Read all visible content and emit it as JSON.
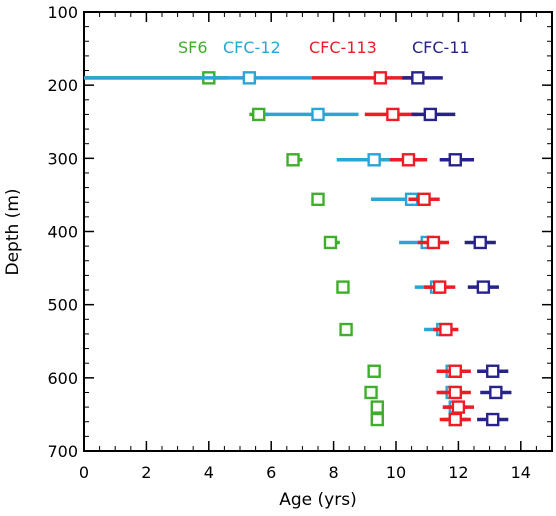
{
  "chart_data": {
    "type": "scatter",
    "title": "",
    "xlabel": "Age (yrs)",
    "ylabel": "Depth (m)",
    "xlim": [
      0,
      15
    ],
    "ylim": [
      700,
      100
    ],
    "y_inverted": true,
    "x_ticks": [
      "0",
      "2",
      "4",
      "6",
      "8",
      "10",
      "12",
      "14"
    ],
    "y_ticks": [
      "100",
      "200",
      "300",
      "400",
      "500",
      "600",
      "700"
    ],
    "grid": false,
    "legend_position": "top",
    "marker": "open-square-with-horizontal-error-bar",
    "series": [
      {
        "name": "SF6",
        "color": "#3fae2a",
        "points": [
          {
            "depth": 190,
            "age": 4.0,
            "age_min": 0.0,
            "age_max": 4.6
          },
          {
            "depth": 240,
            "age": 5.6,
            "age_min": 5.3,
            "age_max": 5.9
          },
          {
            "depth": 302,
            "age": 6.7,
            "age_min": 6.5,
            "age_max": 7.0
          },
          {
            "depth": 356,
            "age": 7.5,
            "age_min": 7.3,
            "age_max": 7.7
          },
          {
            "depth": 415,
            "age": 7.9,
            "age_min": 7.7,
            "age_max": 8.2
          },
          {
            "depth": 476,
            "age": 8.3,
            "age_min": 8.1,
            "age_max": 8.5
          },
          {
            "depth": 534,
            "age": 8.4,
            "age_min": 8.2,
            "age_max": 8.6
          },
          {
            "depth": 591,
            "age": 9.3,
            "age_min": 9.1,
            "age_max": 9.5
          },
          {
            "depth": 620,
            "age": 9.2,
            "age_min": 9.0,
            "age_max": 9.4
          },
          {
            "depth": 640,
            "age": 9.4,
            "age_min": 9.2,
            "age_max": 9.6
          },
          {
            "depth": 657,
            "age": 9.4,
            "age_min": 9.2,
            "age_max": 9.6
          }
        ]
      },
      {
        "name": "CFC-12",
        "color": "#2ba4d6",
        "points": [
          {
            "depth": 190,
            "age": 5.3,
            "age_min": 0.0,
            "age_max": 7.3
          },
          {
            "depth": 240,
            "age": 7.5,
            "age_min": 5.8,
            "age_max": 8.8
          },
          {
            "depth": 302,
            "age": 9.3,
            "age_min": 8.1,
            "age_max": 10.3
          },
          {
            "depth": 356,
            "age": 10.5,
            "age_min": 9.2,
            "age_max": 11.0
          },
          {
            "depth": 415,
            "age": 11.0,
            "age_min": 10.1,
            "age_max": 11.5
          },
          {
            "depth": 476,
            "age": 11.3,
            "age_min": 10.6,
            "age_max": 11.6
          },
          {
            "depth": 534,
            "age": 11.5,
            "age_min": 10.9,
            "age_max": 11.8
          },
          {
            "depth": 591,
            "age": 11.8,
            "age_min": 11.4,
            "age_max": 12.2
          },
          {
            "depth": 620,
            "age": 11.8,
            "age_min": 11.4,
            "age_max": 12.2
          },
          {
            "depth": 640,
            "age": 11.9,
            "age_min": 11.5,
            "age_max": 12.3
          },
          {
            "depth": 657,
            "age": 11.9,
            "age_min": 11.5,
            "age_max": 12.3
          }
        ]
      },
      {
        "name": "CFC-113",
        "color": "#ee1c24",
        "points": [
          {
            "depth": 190,
            "age": 9.5,
            "age_min": 7.3,
            "age_max": 10.6
          },
          {
            "depth": 240,
            "age": 9.9,
            "age_min": 9.0,
            "age_max": 10.7
          },
          {
            "depth": 302,
            "age": 10.4,
            "age_min": 9.8,
            "age_max": 11.0
          },
          {
            "depth": 356,
            "age": 10.9,
            "age_min": 10.4,
            "age_max": 11.4
          },
          {
            "depth": 415,
            "age": 11.2,
            "age_min": 10.7,
            "age_max": 11.7
          },
          {
            "depth": 476,
            "age": 11.4,
            "age_min": 10.9,
            "age_max": 11.9
          },
          {
            "depth": 534,
            "age": 11.6,
            "age_min": 11.2,
            "age_max": 12.0
          },
          {
            "depth": 591,
            "age": 11.9,
            "age_min": 11.3,
            "age_max": 12.4
          },
          {
            "depth": 620,
            "age": 11.9,
            "age_min": 11.3,
            "age_max": 12.4
          },
          {
            "depth": 640,
            "age": 12.0,
            "age_min": 11.5,
            "age_max": 12.5
          },
          {
            "depth": 657,
            "age": 11.9,
            "age_min": 11.4,
            "age_max": 12.4
          }
        ]
      },
      {
        "name": "CFC-11",
        "color": "#28238a",
        "points": [
          {
            "depth": 190,
            "age": 10.7,
            "age_min": 10.2,
            "age_max": 11.5
          },
          {
            "depth": 240,
            "age": 11.1,
            "age_min": 10.5,
            "age_max": 11.9
          },
          {
            "depth": 302,
            "age": 11.9,
            "age_min": 11.4,
            "age_max": 12.5
          },
          {
            "depth": 415,
            "age": 12.7,
            "age_min": 12.2,
            "age_max": 13.2
          },
          {
            "depth": 476,
            "age": 12.8,
            "age_min": 12.3,
            "age_max": 13.3
          },
          {
            "depth": 591,
            "age": 13.1,
            "age_min": 12.6,
            "age_max": 13.6
          },
          {
            "depth": 620,
            "age": 13.2,
            "age_min": 12.7,
            "age_max": 13.7
          },
          {
            "depth": 657,
            "age": 13.1,
            "age_min": 12.6,
            "age_max": 13.6
          }
        ]
      }
    ]
  }
}
